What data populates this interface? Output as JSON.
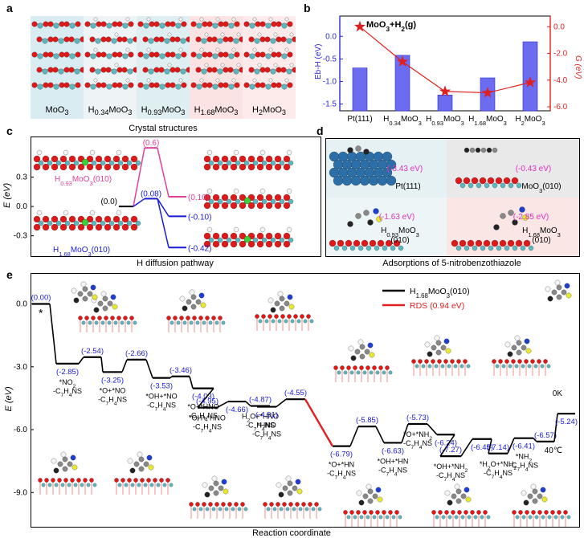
{
  "panels": {
    "a": {
      "letter": "a",
      "caption": "Crystal structures",
      "structures": [
        {
          "name": "MoO",
          "sub": "3",
          "prefix": ""
        },
        {
          "name": "H",
          "sub": "0.34",
          "name2": "MoO",
          "sub2": "3"
        },
        {
          "name": "H",
          "sub": "0.93",
          "name2": "MoO",
          "sub2": "3"
        },
        {
          "name": "H",
          "sub": "1.68",
          "name2": "MoO",
          "sub2": "3"
        },
        {
          "name": "H",
          "sub": "2",
          "name2": "MoO",
          "sub2": "3"
        }
      ],
      "bg_colors": [
        "#d9ecf2",
        "#eef3f5",
        "#dfeef0",
        "#fbe3e3",
        "#fdeaea"
      ]
    },
    "b": {
      "letter": "b",
      "annotation": "MoO3+H2(g)",
      "ylabel_left": "Eb-H (eV)",
      "ylabel_right": "G (eV)"
    },
    "c": {
      "letter": "c",
      "caption": "H diffusion pathway",
      "ylabel": "E (eV)",
      "label_h093": "H0.93MoO3(010)",
      "label_h168": "H1.68MoO3(010)"
    },
    "d": {
      "letter": "d",
      "caption": "Adsorptions of 5-nitrobenzothiazole",
      "items": [
        {
          "energy": "(-3.43 eV)",
          "label": "Pt(111)"
        },
        {
          "energy": "(-0.43 eV)",
          "label": "MoO3(010)"
        },
        {
          "energy": "(-1.63 eV)",
          "label": "H0.93MoO3 (010)"
        },
        {
          "energy": "(-2.85 eV)",
          "label": "H1.68MoO3 (010)"
        }
      ]
    },
    "e": {
      "letter": "e",
      "xlabel": "Reaction coordinate",
      "ylabel": "E (eV)",
      "legend": [
        {
          "label": "H1.68MoO3(010)",
          "color": "#000000"
        },
        {
          "label": "RDS (0.94 eV)",
          "color": "#e02020"
        }
      ],
      "conditions": [
        "0K",
        "40℃"
      ],
      "star": "*"
    }
  },
  "chart_data": [
    {
      "panel": "b",
      "type": "bar+line",
      "categories": [
        "Pt(111)",
        "H0.34MoO3",
        "H0.93MoO3",
        "H1.68MoO3",
        "H2MoO3"
      ],
      "series": [
        {
          "name": "Eb-H (eV)",
          "axis": "left",
          "type": "bar",
          "values": [
            -0.7,
            -0.42,
            -1.3,
            -0.92,
            -0.12
          ]
        },
        {
          "name": "G (eV)",
          "axis": "right",
          "type": "line",
          "values": [
            0.0,
            -2.62,
            -4.85,
            -4.95,
            -4.18
          ]
        }
      ],
      "xcats_line": [
        "MoO3+H2(g)",
        "H0.34MoO3",
        "H0.93MoO3",
        "H1.68MoO3",
        "H2MoO3"
      ],
      "ylim_left": [
        -1.65,
        0.45
      ],
      "yticks_left": [
        0.0,
        -0.5,
        -1.0,
        -1.5
      ],
      "ylim_right": [
        -6.3,
        0.8
      ],
      "yticks_right": [
        0.0,
        -2.0,
        -4.0,
        -6.0
      ]
    },
    {
      "panel": "c",
      "type": "energy-profile",
      "yticks": [
        0.3,
        0.0,
        -0.3
      ],
      "ylim": [
        -0.5,
        0.7
      ],
      "series": [
        {
          "name": "H0.93MoO3(010)",
          "color": "#e0409a",
          "levels": [
            0.0,
            0.6,
            0.1
          ],
          "labels": [
            "(0.0)",
            "(0.6)",
            "(0.10)"
          ]
        },
        {
          "name": "H1.68MoO3(010)",
          "color": "#1a1adb",
          "levels": [
            0.0,
            0.08,
            -0.1,
            -0.42
          ],
          "labels": [
            "(0.0)",
            "(0.08)",
            "(-0.10)",
            "(-0.42)"
          ]
        }
      ]
    },
    {
      "panel": "e",
      "type": "energy-profile",
      "yticks": [
        0.0,
        -3.0,
        -6.0,
        -9.0
      ],
      "ylim": [
        -10.6,
        1.4
      ],
      "levels": [
        {
          "x": 0,
          "y": 0.0,
          "label": "(0.00)",
          "species": ""
        },
        {
          "x": 1,
          "y": -2.85,
          "label": "(-2.85)",
          "species": "*NO2 -C7H4NS"
        },
        {
          "x": 2,
          "y": -2.54,
          "label": "(-2.54)",
          "species": ""
        },
        {
          "x": 3,
          "y": -3.25,
          "label": "(-3.25)",
          "species": "*O+*NO -C7H4NS"
        },
        {
          "x": 4,
          "y": -2.66,
          "label": "(-2.66)",
          "species": ""
        },
        {
          "x": 5,
          "y": -3.53,
          "label": "(-3.53)",
          "species": "*OH+*NO -C7H4NS"
        },
        {
          "x": 6,
          "y": -3.46,
          "label": "(-3.46)",
          "species": ""
        },
        {
          "x": 7,
          "y": -4.03,
          "label": "(-4.03)",
          "species": "*O+*HNO -C7H4NS"
        },
        {
          "x": 8,
          "y": -4.95,
          "label": "(-4.95)",
          "species": "*OH+*HNO -C7H4NS"
        },
        {
          "x": 9,
          "y": -4.66,
          "label": "(-4.66)",
          "species": ""
        },
        {
          "x": 10,
          "y": -4.87,
          "label": "(-4.87)",
          "species": "H2O+*HNO -C7H4NS"
        },
        {
          "x": 11,
          "y": -4.91,
          "label": "(-4.91)",
          "species": "*HNO -C7H4NS"
        },
        {
          "x": 12,
          "y": -4.55,
          "label": "(-4.55)",
          "species": ""
        },
        {
          "x": 13,
          "y": -6.79,
          "label": "(-6.79)",
          "species": "*O+*HN -C7H4NS"
        },
        {
          "x": 14,
          "y": -5.85,
          "label": "(-5.85)",
          "species": ""
        },
        {
          "x": 15,
          "y": -6.63,
          "label": "(-6.63)",
          "species": "*OH+*HN -C7H4NS"
        },
        {
          "x": 16,
          "y": -5.73,
          "label": "(-5.73)",
          "species": "*O+*NH2 -C7H4NS"
        },
        {
          "x": 17,
          "y": -6.24,
          "label": "(-6.24)",
          "species": ""
        },
        {
          "x": 18,
          "y": -7.27,
          "label": "(-7.27)",
          "species": "*OH+*NH2 -C7H4NS"
        },
        {
          "x": 19,
          "y": -6.45,
          "label": "(-6.45)",
          "species": ""
        },
        {
          "x": 20,
          "y": -7.14,
          "label": "(-7.14)",
          "species": "*H2O+*NH2 -C7H4NS"
        },
        {
          "x": 21,
          "y": -6.41,
          "label": "(-6.41)",
          "species": "*NH2 -C7H4NS"
        },
        {
          "x": 22,
          "y": -6.57,
          "label": "(-6.57)",
          "species": ""
        },
        {
          "x": 23,
          "y": -5.24,
          "label": "(-5.24)",
          "species": ""
        }
      ],
      "rds": {
        "from": 12,
        "to": 13,
        "barrier_eV": 0.94
      }
    }
  ]
}
